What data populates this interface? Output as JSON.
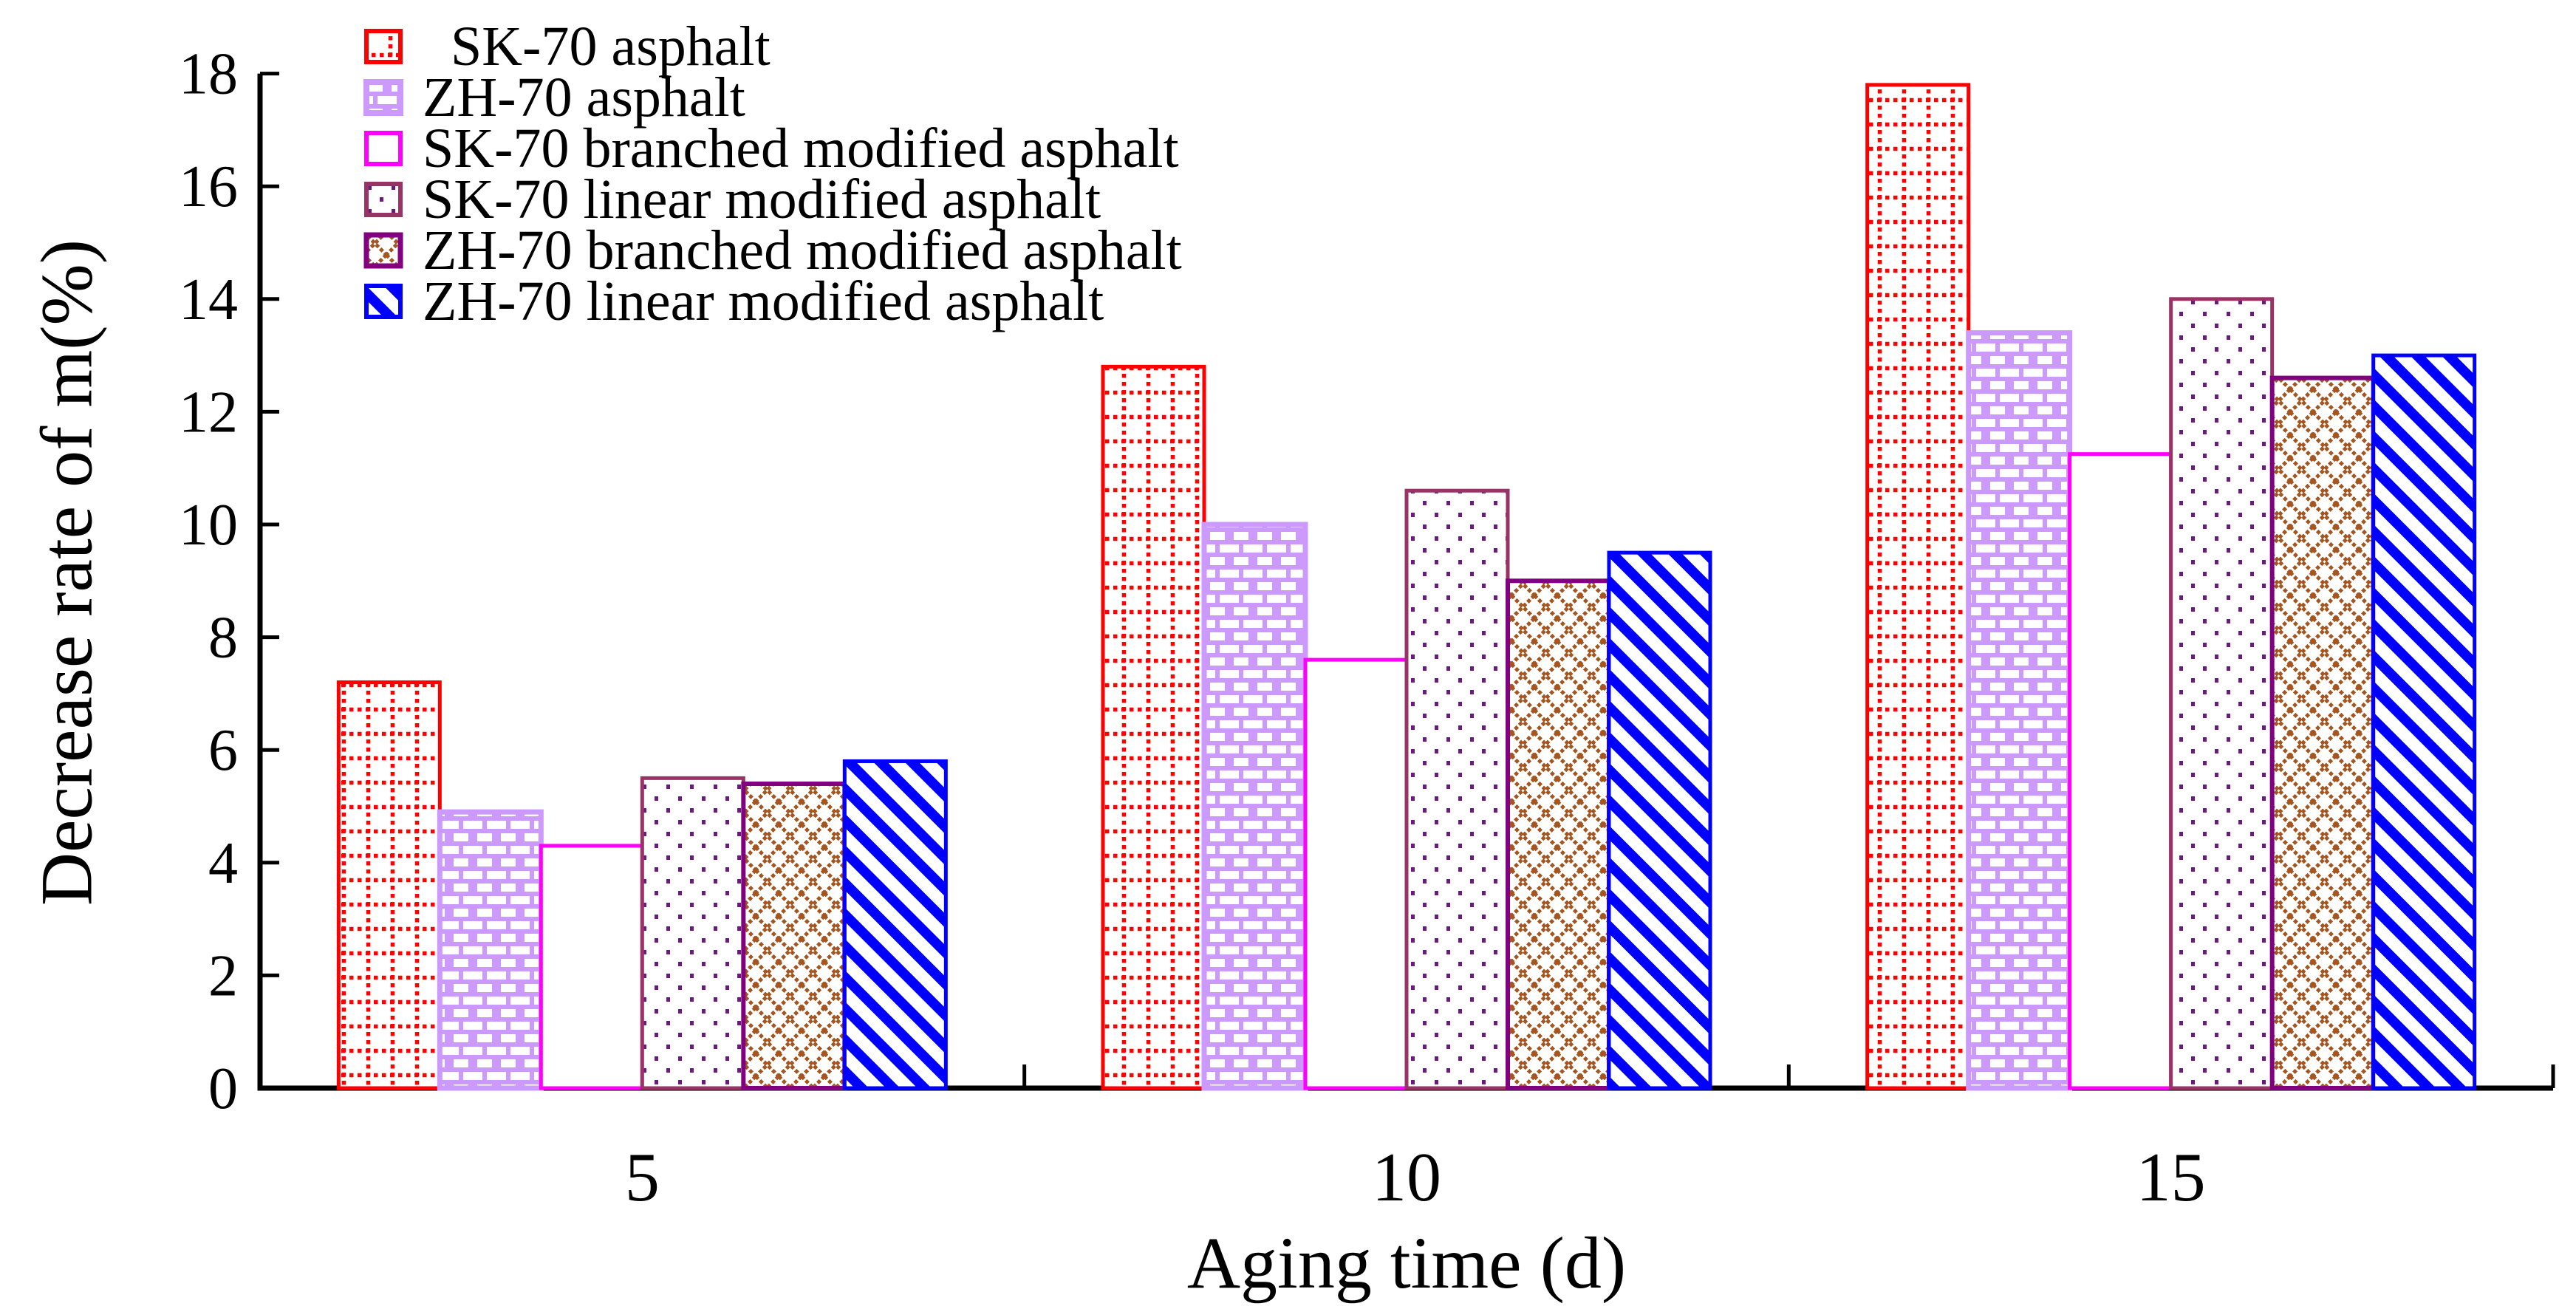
{
  "background": "#FFFFFF",
  "axis_color": "#000000",
  "chart_data": {
    "type": "bar",
    "title": "",
    "xlabel": "Aging time (d)",
    "ylabel": "Decrease rate of m(%)",
    "categories": [
      "5",
      "10",
      "15"
    ],
    "ylim": [
      0,
      18
    ],
    "yticks": [
      0,
      2,
      4,
      6,
      8,
      10,
      12,
      14,
      16,
      18
    ],
    "grid": false,
    "legend_position": "top-left-inside",
    "series": [
      {
        "name": "SK-70 asphalt",
        "legend_label": "  SK-70 asphalt",
        "values": [
          7.2,
          12.8,
          17.8
        ],
        "color": "#FF0000",
        "pattern": "red-dotted-grid",
        "pattern_color": "#FF0000",
        "border_width": 5
      },
      {
        "name": "ZH-70 asphalt",
        "legend_label": "ZH-70 asphalt",
        "values": [
          4.9,
          10.0,
          13.4
        ],
        "color": "#CC99FF",
        "pattern": "violet-brick",
        "pattern_color": "#CC99FF",
        "border_width": 7
      },
      {
        "name": "SK-70 branched modified asphalt",
        "legend_label": "SK-70 branched modified asphalt",
        "values": [
          4.3,
          7.6,
          11.25
        ],
        "color": "#FF00FF",
        "pattern": "plain-white",
        "pattern_color": "#FFFFFF",
        "border_width": 5
      },
      {
        "name": "SK-70 linear modified asphalt",
        "legend_label": "SK-70 linear modified asphalt",
        "values": [
          5.5,
          10.6,
          14.0
        ],
        "color": "#993366",
        "pattern": "purple-dots",
        "pattern_color": "#6B1B7B",
        "border_width": 5
      },
      {
        "name": "ZH-70 branched modified asphalt",
        "legend_label": "ZH-70 branched modified asphalt",
        "values": [
          5.4,
          9.0,
          12.6
        ],
        "color": "#800080",
        "pattern": "brown-crosshatch",
        "pattern_color": "#A5551F",
        "border_width": 6
      },
      {
        "name": "ZH-70 linear modified asphalt",
        "legend_label": "ZH-70 linear modified asphalt",
        "values": [
          5.8,
          9.5,
          13.0
        ],
        "color": "#0000FF",
        "pattern": "blue-diagonal-stripes",
        "pattern_color": "#0000FF",
        "border_width": 5
      }
    ]
  }
}
